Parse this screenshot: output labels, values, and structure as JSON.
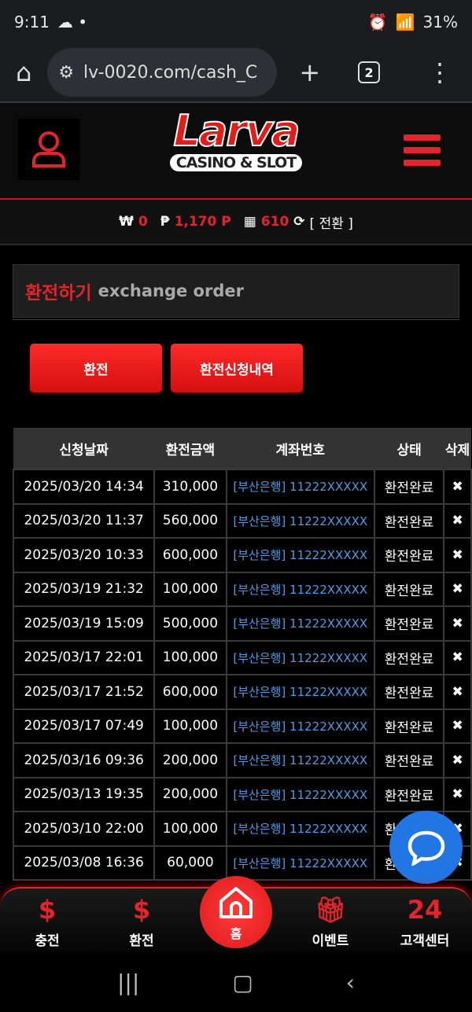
{
  "status_bar": {
    "time": "9:11",
    "battery": "31%"
  },
  "browser": {
    "url": "lv-0020.com/cash_C",
    "tab_count": "2"
  },
  "header": {
    "logo_text": "Larva",
    "logo_sub": "CASINO & SLOT"
  },
  "balance": {
    "won_symbol": "₩",
    "won": "0",
    "point_symbol": "₱",
    "points": "1,170 P",
    "chip": "610",
    "convert": "[ 전환 ]"
  },
  "page": {
    "title_ko": "환전하기",
    "title_en": "exchange order"
  },
  "buttons": {
    "exchange": "환전",
    "history": "환전신청내역"
  },
  "table": {
    "headers": [
      "신청날짜",
      "환전금액",
      "계좌번호",
      "상태",
      "삭제"
    ],
    "rows": [
      {
        "date": "2025/03/20 14:34",
        "amount": "310,000",
        "account": "[부산은행] 11222XXXXX",
        "status": "환전완료",
        "delete": "✖"
      },
      {
        "date": "2025/03/20 11:37",
        "amount": "560,000",
        "account": "[부산은행] 11222XXXXX",
        "status": "환전완료",
        "delete": "✖"
      },
      {
        "date": "2025/03/20 10:33",
        "amount": "600,000",
        "account": "[부산은행] 11222XXXXX",
        "status": "환전완료",
        "delete": "✖"
      },
      {
        "date": "2025/03/19 21:32",
        "amount": "100,000",
        "account": "[부산은행] 11222XXXXX",
        "status": "환전완료",
        "delete": "✖"
      },
      {
        "date": "2025/03/19 15:09",
        "amount": "500,000",
        "account": "[부산은행] 11222XXXXX",
        "status": "환전완료",
        "delete": "✖"
      },
      {
        "date": "2025/03/17 22:01",
        "amount": "100,000",
        "account": "[부산은행] 11222XXXXX",
        "status": "환전완료",
        "delete": "✖"
      },
      {
        "date": "2025/03/17 21:52",
        "amount": "600,000",
        "account": "[부산은행] 11222XXXXX",
        "status": "환전완료",
        "delete": "✖"
      },
      {
        "date": "2025/03/17 07:49",
        "amount": "100,000",
        "account": "[부산은행] 11222XXXXX",
        "status": "환전완료",
        "delete": "✖"
      },
      {
        "date": "2025/03/16 09:36",
        "amount": "200,000",
        "account": "[부산은행] 11222XXXXX",
        "status": "환전완료",
        "delete": "✖"
      },
      {
        "date": "2025/03/13 19:35",
        "amount": "200,000",
        "account": "[부산은행] 11222XXXXX",
        "status": "환전완료",
        "delete": "✖"
      },
      {
        "date": "2025/03/10 22:00",
        "amount": "100,000",
        "account": "[부산은행] 11222XXXXX",
        "status": "환전완료",
        "delete": "✖"
      },
      {
        "date": "2025/03/08 16:36",
        "amount": "60,000",
        "account": "[부산은행] 11222XXXXX",
        "status": "환전완료",
        "delete": "✖"
      }
    ]
  },
  "bottom_nav": {
    "charge": "충전",
    "exchange": "환전",
    "home": "홈",
    "event": "이벤트",
    "support": "고객센터"
  },
  "colors": {
    "accent": "#e5232a",
    "link": "#4c9ce6",
    "chat": "#2176e3"
  }
}
